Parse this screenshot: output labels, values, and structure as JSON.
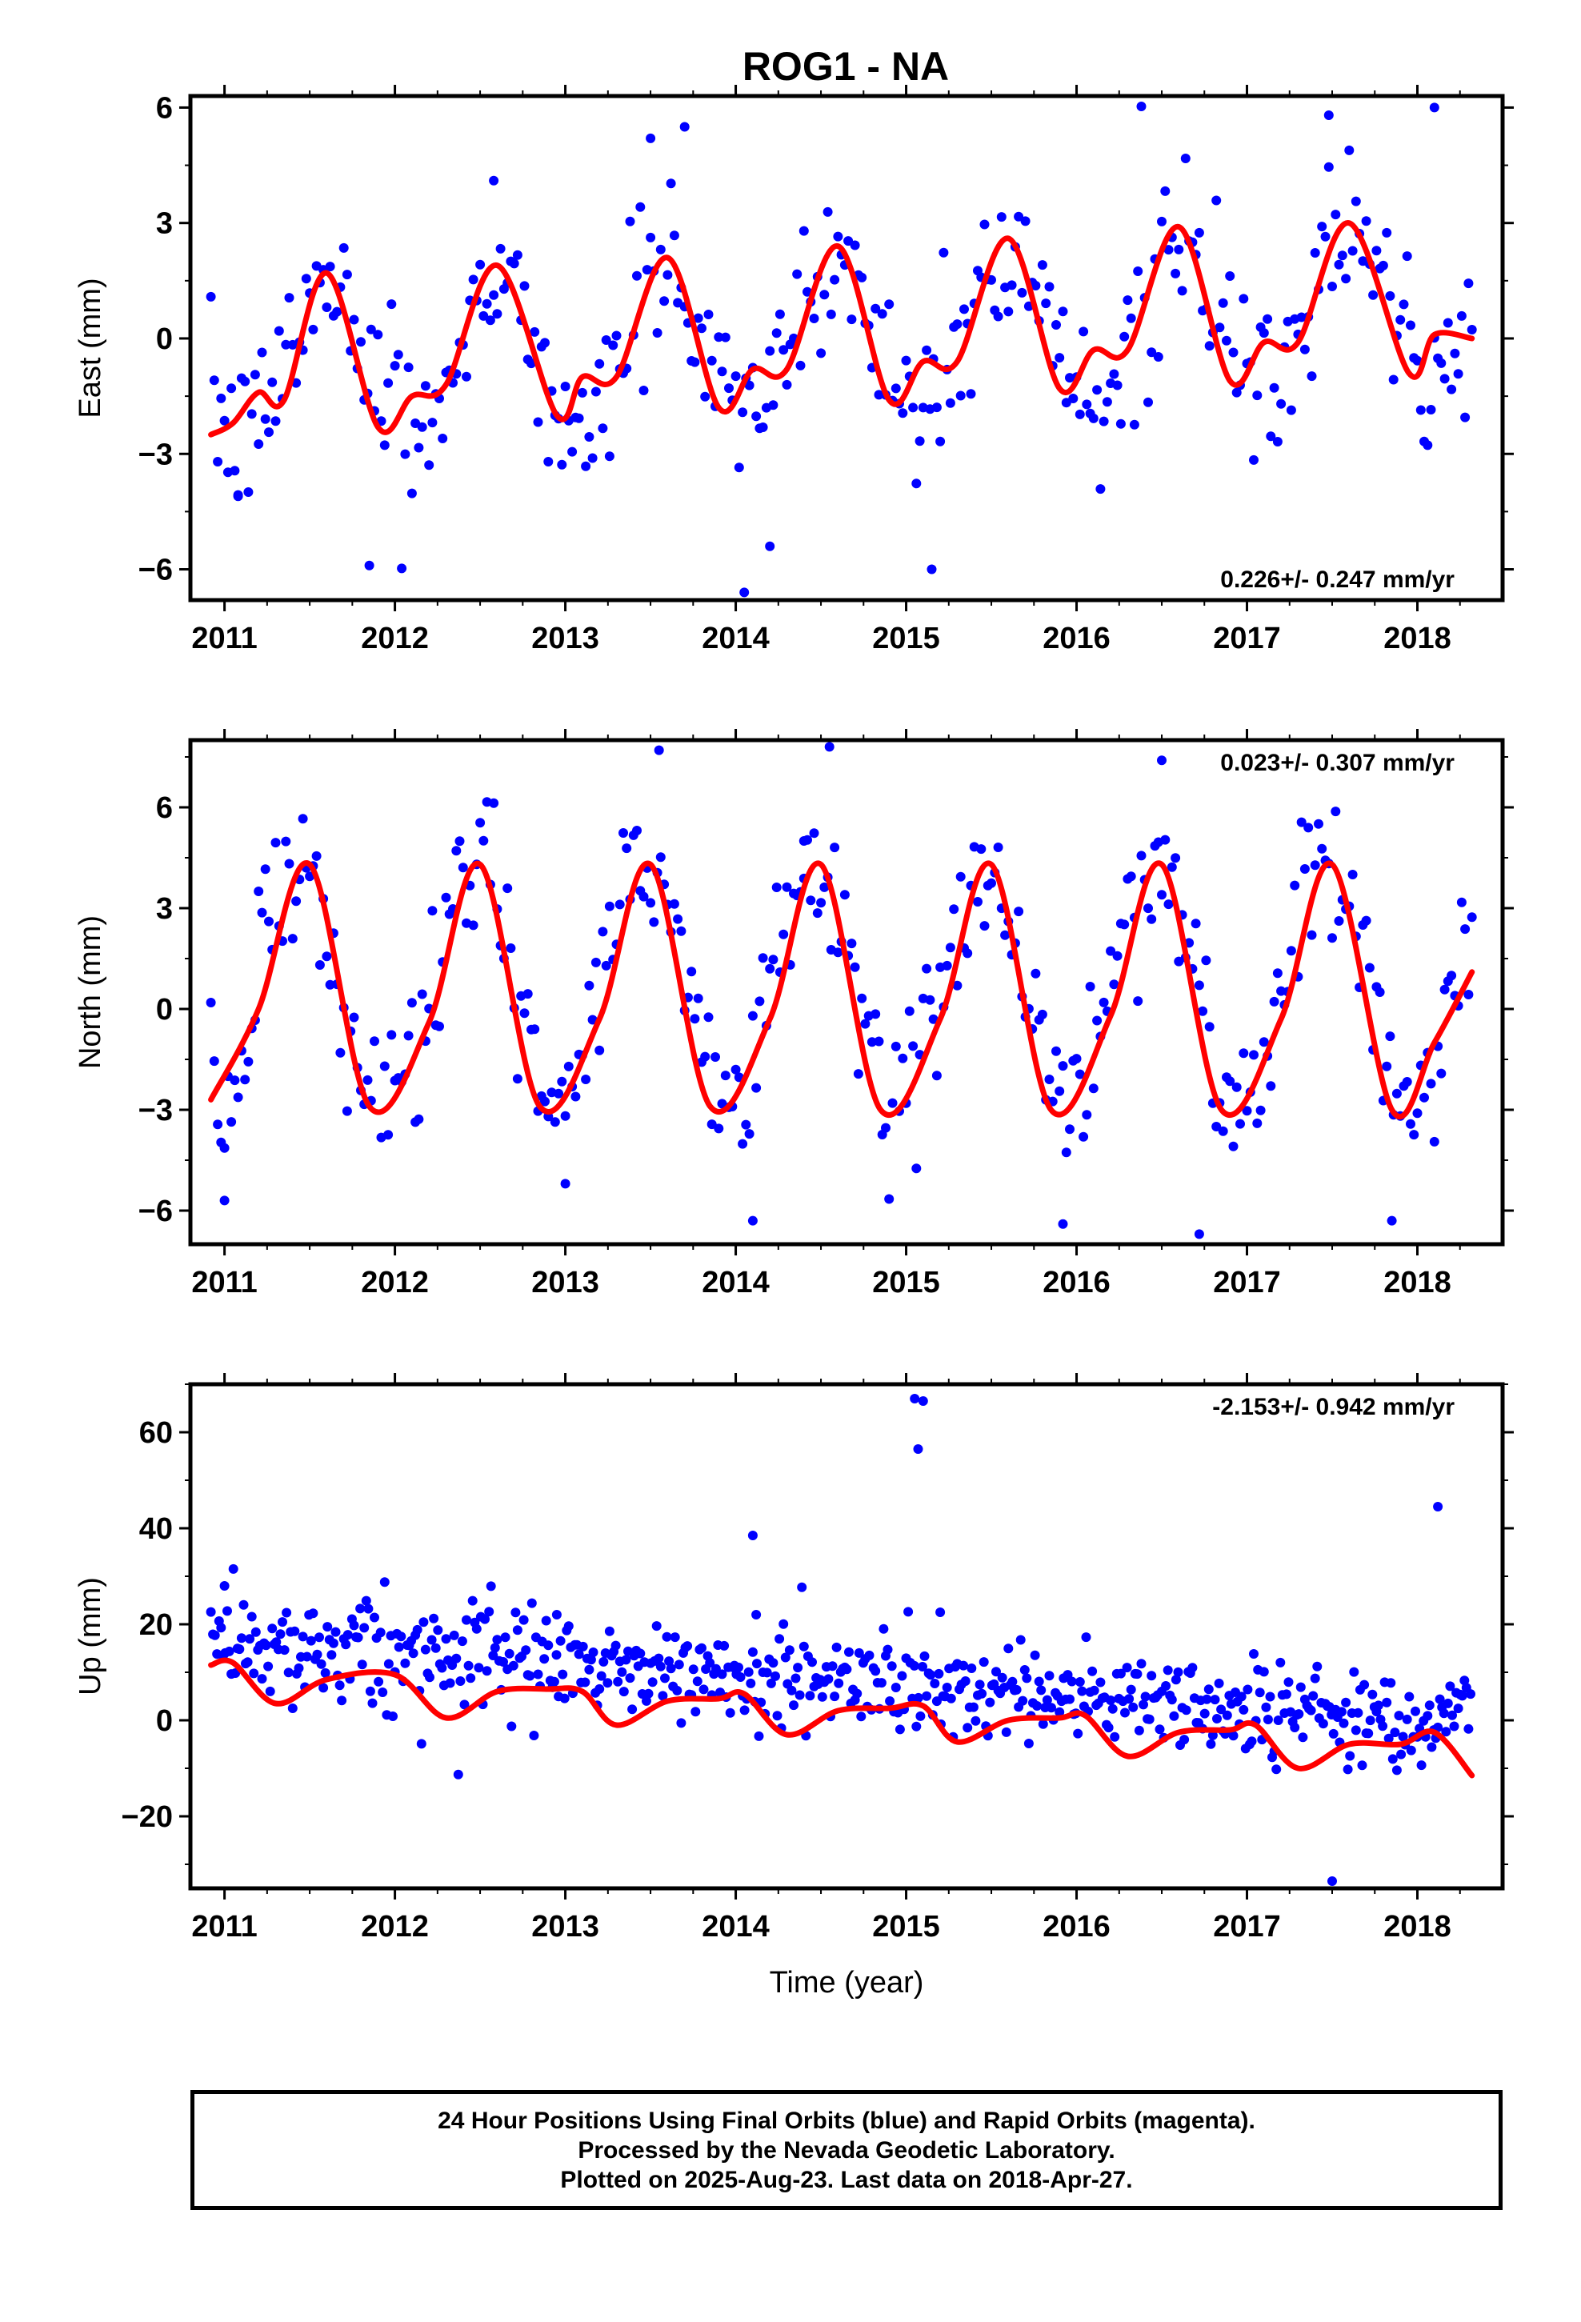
{
  "page": {
    "title": "ROG1 - NA"
  },
  "chart_data": [
    {
      "type": "scatter",
      "panel": "east",
      "ylabel": "East (mm)",
      "xlabel": "",
      "xlim": [
        2010.8,
        2018.5
      ],
      "ylim": [
        -6.8,
        6.3
      ],
      "yticks": [
        -6,
        -3,
        0,
        3,
        6
      ],
      "xticks": [
        2011,
        2012,
        2013,
        2014,
        2015,
        2016,
        2017,
        2018
      ],
      "rate_label": "0.226+/- 0.247 mm/yr",
      "rate_position": "bottom-right",
      "series": [
        {
          "name": "Final Orbits (blue)",
          "color": "#0000ff",
          "model": {
            "x_start": 2010.92,
            "x_end": 2018.32,
            "step": 0.02,
            "offset": 0.0,
            "trend": 0.226,
            "annual_sin": -1.05,
            "annual_cos": -1.56,
            "semiannual_sin": 0.0,
            "semiannual_cos": 0.0,
            "scatter": 1.0,
            "outlier_fraction": 0.03,
            "outlier_scale": 3.0
          },
          "points": [
            [
              2011.08,
              -4.1
            ],
            [
              2011.85,
              -5.9
            ],
            [
              2013.7,
              5.5
            ],
            [
              2014.05,
              -6.6
            ],
            [
              2014.2,
              -5.4
            ],
            [
              2015.15,
              -6.0
            ],
            [
              2017.48,
              5.8
            ],
            [
              2018.1,
              6.0
            ],
            [
              2012.58,
              4.1
            ],
            [
              2013.5,
              5.2
            ]
          ]
        },
        {
          "name": "Seasonal model",
          "color": "#ff0000",
          "x": [
            2010.92,
            2011.05,
            2011.2,
            2011.35,
            2011.6,
            2011.9,
            2012.1,
            2012.3,
            2012.6,
            2012.95,
            2013.1,
            2013.3,
            2013.6,
            2013.9,
            2014.1,
            2014.3,
            2014.6,
            2014.9,
            2015.1,
            2015.3,
            2015.6,
            2015.9,
            2016.1,
            2016.3,
            2016.6,
            2016.9,
            2017.1,
            2017.3,
            2017.6,
            2017.95,
            2018.1,
            2018.32
          ],
          "y": [
            -2.5,
            -2.2,
            -1.4,
            -1.6,
            1.7,
            -2.3,
            -1.5,
            -1.2,
            1.9,
            -2.0,
            -1.0,
            -1.0,
            2.1,
            -1.8,
            -0.8,
            -0.8,
            2.4,
            -1.6,
            -0.6,
            -0.6,
            2.6,
            -1.3,
            -0.3,
            -0.3,
            2.9,
            -1.1,
            -0.1,
            -0.1,
            3.0,
            -0.9,
            0.1,
            0.0
          ]
        }
      ]
    },
    {
      "type": "scatter",
      "panel": "north",
      "ylabel": "North (mm)",
      "xlabel": "",
      "xlim": [
        2010.8,
        2018.5
      ],
      "ylim": [
        -7.0,
        8.0
      ],
      "yticks": [
        -6,
        -3,
        0,
        3,
        6
      ],
      "xticks": [
        2011,
        2012,
        2013,
        2014,
        2015,
        2016,
        2017,
        2018
      ],
      "rate_label": "0.023+/- 0.307 mm/yr",
      "rate_position": "top-right",
      "series": [
        {
          "name": "Final Orbits (blue)",
          "color": "#0000ff",
          "model": {
            "x_start": 2010.92,
            "x_end": 2018.32,
            "step": 0.02,
            "offset": 0.7,
            "trend": 0.023,
            "annual_sin": 0.87,
            "annual_cos": -3.5,
            "semiannual_sin": 0.0,
            "semiannual_cos": 0.0,
            "scatter": 1.2,
            "outlier_fraction": 0.03,
            "outlier_scale": 2.5
          },
          "points": [
            [
              2011.0,
              -5.7
            ],
            [
              2013.55,
              7.7
            ],
            [
              2014.55,
              7.8
            ],
            [
              2016.5,
              7.4
            ],
            [
              2016.72,
              -6.7
            ],
            [
              2014.1,
              -6.3
            ],
            [
              2015.92,
              -6.4
            ],
            [
              2017.85,
              -6.3
            ],
            [
              2013.0,
              -5.2
            ],
            [
              2014.4,
              5.0
            ]
          ]
        },
        {
          "name": "Seasonal model",
          "color": "#ff0000",
          "x": [
            2010.92,
            2011.2,
            2011.5,
            2011.85,
            2012.2,
            2012.5,
            2012.85,
            2013.2,
            2013.5,
            2013.85,
            2014.2,
            2014.5,
            2014.85,
            2015.2,
            2015.5,
            2015.85,
            2016.2,
            2016.5,
            2016.85,
            2017.2,
            2017.5,
            2017.85,
            2018.1,
            2018.32
          ],
          "y": [
            -2.7,
            0.0,
            4.3,
            -2.9,
            -0.4,
            4.3,
            -2.9,
            -0.3,
            4.3,
            -2.9,
            -0.3,
            4.3,
            -3.0,
            -0.3,
            4.3,
            -3.0,
            -0.2,
            4.3,
            -3.0,
            -0.3,
            4.3,
            -3.0,
            -1.0,
            1.1
          ]
        }
      ]
    },
    {
      "type": "scatter",
      "panel": "up",
      "ylabel": "Up (mm)",
      "xlabel": "Time (year)",
      "xlim": [
        2010.8,
        2018.5
      ],
      "ylim": [
        -35,
        70
      ],
      "yticks": [
        -20,
        0,
        20,
        40,
        60
      ],
      "xticks": [
        2011,
        2012,
        2013,
        2014,
        2015,
        2016,
        2017,
        2018
      ],
      "rate_label": "-2.153+/- 0.942 mm/yr",
      "rate_position": "top-right",
      "series": [
        {
          "name": "Final Orbits (blue)",
          "color": "#0000ff",
          "model": {
            "x_start": 2010.92,
            "x_end": 2018.32,
            "step": 0.012,
            "offset": 8.0,
            "trend": -2.153,
            "annual_sin": 0.0,
            "annual_cos": 0.0,
            "semiannual_sin": 0.0,
            "semiannual_cos": 0.0,
            "scatter": 5.0,
            "outlier_fraction": 0.02,
            "outlier_scale": 3.0
          },
          "points": [
            [
              2015.05,
              67.0
            ],
            [
              2015.1,
              66.5
            ],
            [
              2015.07,
              56.5
            ],
            [
              2014.1,
              38.5
            ],
            [
              2018.12,
              44.5
            ],
            [
              2017.5,
              -33.5
            ],
            [
              2012.95,
              22.0
            ],
            [
              2015.2,
              22.5
            ],
            [
              2014.12,
              22.0
            ],
            [
              2011.0,
              28.0
            ]
          ]
        },
        {
          "name": "Seasonal model",
          "color": "#ff0000",
          "x": [
            2010.92,
            2011.05,
            2011.3,
            2011.6,
            2012.0,
            2012.3,
            2012.6,
            2012.9,
            2013.1,
            2013.3,
            2013.6,
            2013.9,
            2014.05,
            2014.3,
            2014.6,
            2014.9,
            2015.1,
            2015.3,
            2015.6,
            2015.9,
            2016.05,
            2016.3,
            2016.6,
            2016.9,
            2017.05,
            2017.3,
            2017.6,
            2017.9,
            2018.1,
            2018.32
          ],
          "y": [
            11.5,
            12.0,
            3.5,
            8.5,
            9.5,
            0.5,
            6.0,
            6.5,
            6.0,
            -1.0,
            4.0,
            4.5,
            5.5,
            -3.0,
            2.0,
            2.5,
            3.0,
            -4.5,
            0.0,
            0.5,
            1.0,
            -7.5,
            -2.5,
            -2.0,
            -1.0,
            -10.0,
            -5.0,
            -5.0,
            -2.5,
            -11.5
          ]
        }
      ]
    }
  ],
  "footer": {
    "line1": "24 Hour Positions Using Final Orbits (blue) and Rapid Orbits (magenta).",
    "line2": "Processed by the Nevada Geodetic Laboratory.",
    "line3": "Plotted on 2025-Aug-23. Last data on 2018-Apr-27."
  }
}
